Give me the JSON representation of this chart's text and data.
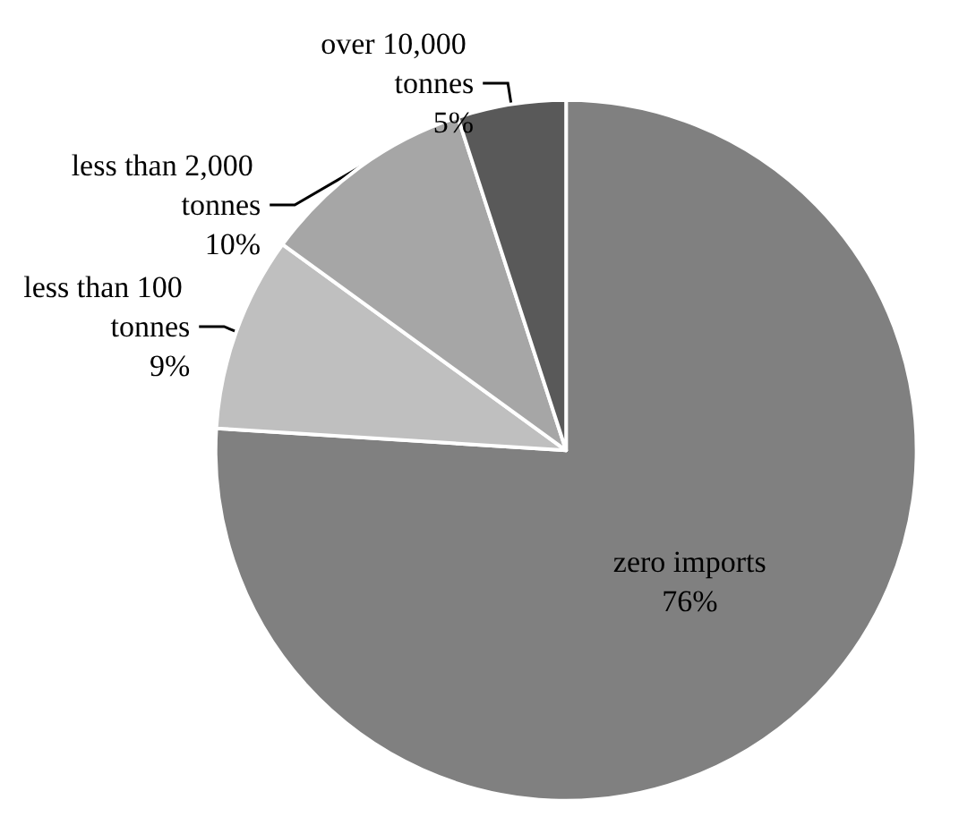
{
  "chart_data": {
    "type": "pie",
    "categories": [
      "zero imports",
      "less than 100 tonnes",
      "less than 2,000 tonnes",
      "over 10,000 tonnes"
    ],
    "values": [
      76,
      9,
      10,
      5
    ],
    "value_labels": [
      "76%",
      "9%",
      "10%",
      "5%"
    ],
    "colors": [
      "#808080",
      "#bfbfbf",
      "#a6a6a6",
      "#595959"
    ],
    "legend": false
  }
}
